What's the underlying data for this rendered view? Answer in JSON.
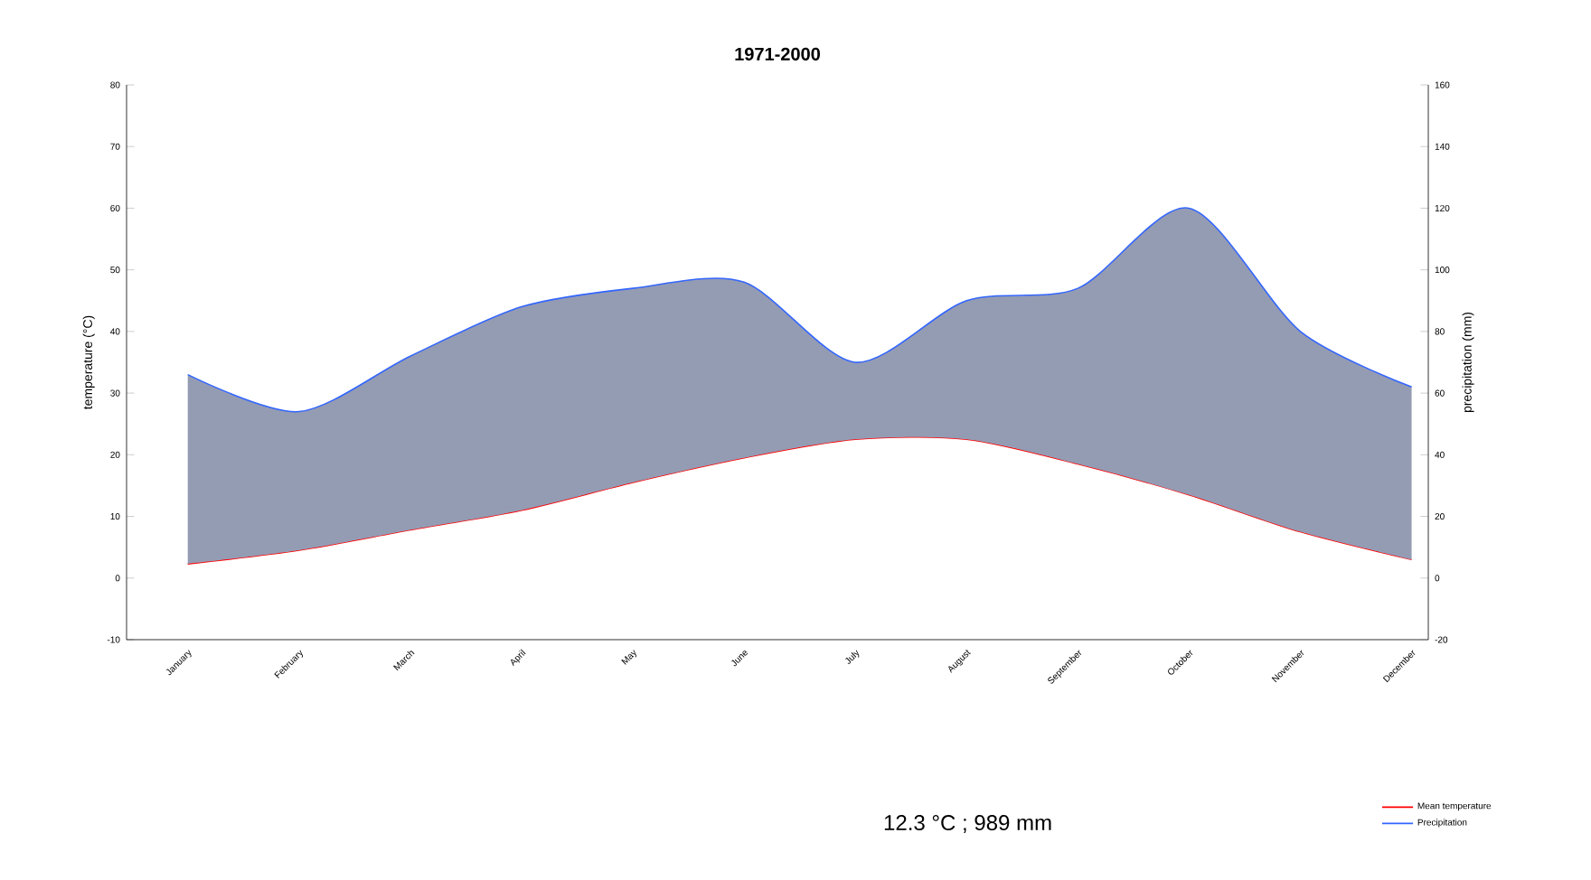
{
  "chart_data": {
    "type": "line",
    "title": "1971-2000",
    "ylabel": "temperature (°C)",
    "y2label": "precipitation (mm)",
    "categories": [
      "January",
      "February",
      "March",
      "April",
      "May",
      "June",
      "July",
      "August",
      "September",
      "October",
      "November",
      "December"
    ],
    "series": [
      {
        "name": "Mean temperature",
        "color": "#ff0000",
        "values": [
          2.3,
          4.5,
          7.8,
          11,
          15.5,
          19.5,
          22.5,
          22.5,
          18.5,
          13.5,
          7.5,
          3
        ]
      },
      {
        "name": "Precipitation",
        "color": "#3366ff",
        "axis": "y2",
        "values": [
          66,
          54,
          72,
          88,
          94,
          96,
          70,
          90,
          94,
          120,
          80,
          62
        ],
        "lower": [
          4.6,
          9,
          15.6,
          22,
          31,
          39,
          45,
          45,
          37,
          27,
          15,
          6
        ],
        "upper": [
          66,
          54,
          72,
          88,
          94,
          96,
          70,
          90,
          94,
          120,
          80,
          62
        ]
      }
    ],
    "ylim": [
      -10,
      80
    ],
    "yticks": [
      -10,
      0,
      10,
      20,
      30,
      40,
      50,
      60,
      70,
      80
    ],
    "y2lim": [
      -20,
      160
    ],
    "y2ticks": [
      -20,
      0,
      20,
      40,
      60,
      80,
      100,
      120,
      140,
      160
    ],
    "grid": false,
    "legend": "bottom right",
    "marker": "none",
    "line_style": "solid",
    "annotations": [
      "12.3 °C ; 989 mm"
    ]
  }
}
